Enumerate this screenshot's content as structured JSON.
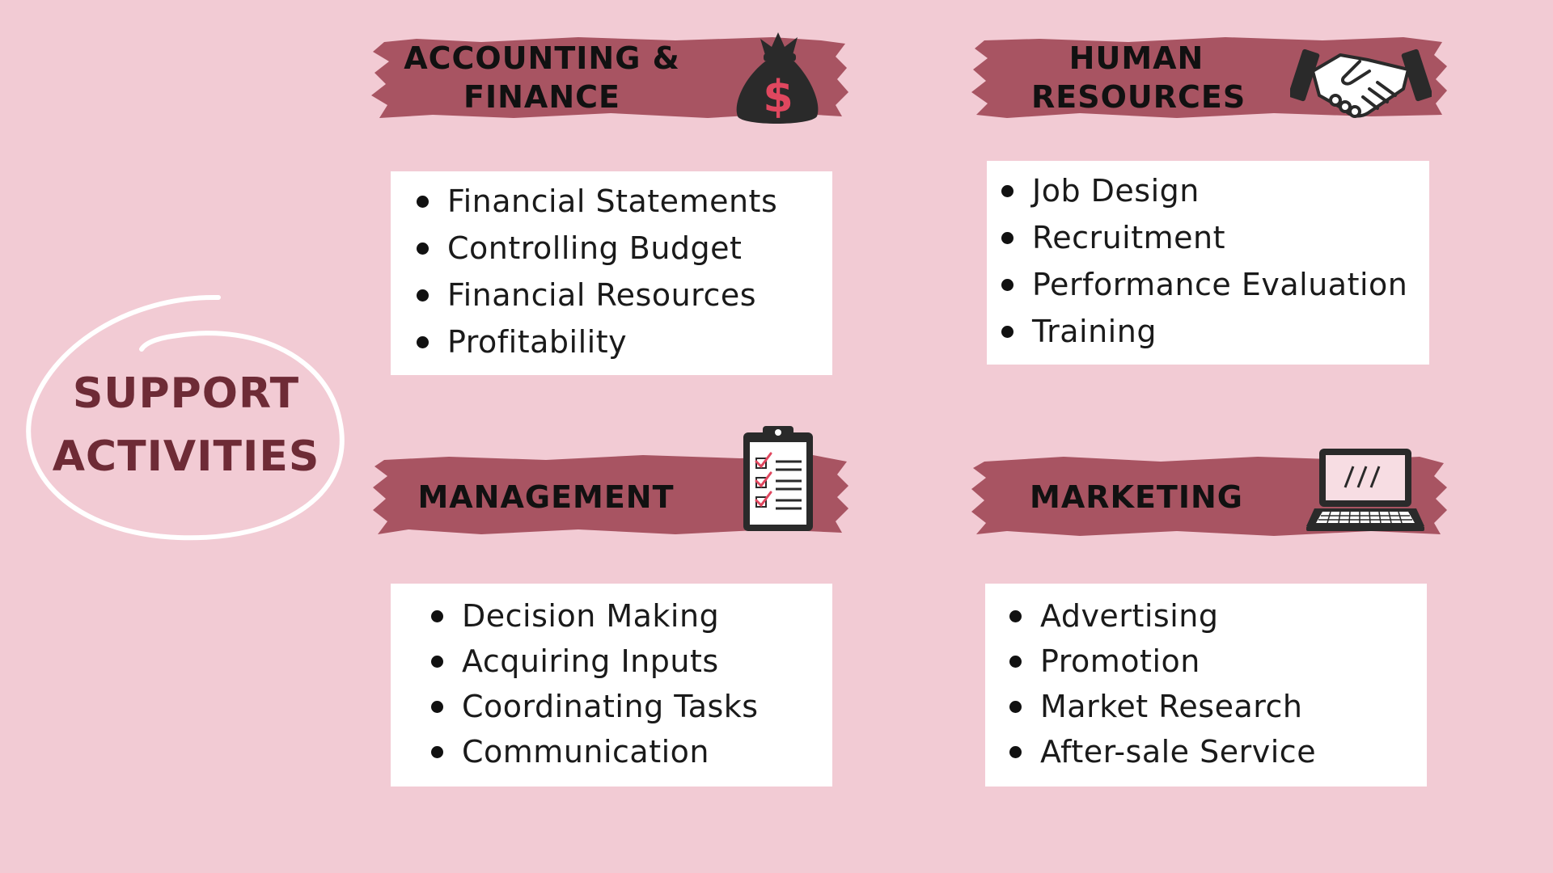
{
  "support": {
    "line1": "SUPPORT",
    "line2": "ACTIVITIES"
  },
  "colors": {
    "background": "#f2cbd4",
    "banner": "#a85462",
    "support_text": "#6e2b36",
    "card": "#ffffff"
  },
  "sections": {
    "accounting": {
      "title_line1": "ACCOUNTING &",
      "title_line2": "FINANCE",
      "icon": "money-bag-icon",
      "items": [
        "Financial Statements",
        "Controlling Budget",
        "Financial Resources",
        "Profitability"
      ]
    },
    "hr": {
      "title_line1": "HUMAN",
      "title_line2": "RESOURCES",
      "icon": "handshake-icon",
      "items": [
        "Job Design",
        "Recruitment",
        "Performance Evaluation",
        "Training"
      ]
    },
    "management": {
      "title": "MANAGEMENT",
      "icon": "clipboard-checklist-icon",
      "items": [
        "Decision Making",
        "Acquiring Inputs",
        "Coordinating Tasks",
        "Communication"
      ]
    },
    "marketing": {
      "title": "MARKETING",
      "icon": "laptop-icon",
      "items": [
        "Advertising",
        "Promotion",
        "Market Research",
        "After-sale Service"
      ]
    }
  }
}
